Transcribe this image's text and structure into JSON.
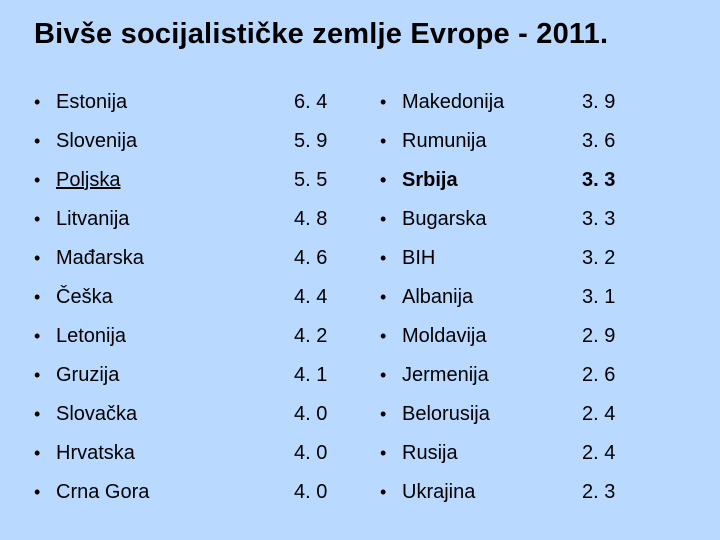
{
  "title": "Bivše socijalističke zemlje Evrope - 2011.",
  "left": [
    {
      "label": "Estonija",
      "value": "6. 4"
    },
    {
      "label": "Slovenija",
      "value": "5. 9"
    },
    {
      "label": "Poljska",
      "value": "5. 5",
      "underline": true
    },
    {
      "label": "Litvanija",
      "value": "4. 8"
    },
    {
      "label": "Mađarska",
      "value": "4. 6"
    },
    {
      "label": "Češka",
      "value": "4. 4"
    },
    {
      "label": "Letonija",
      "value": "4. 2"
    },
    {
      "label": "Gruzija",
      "value": "4. 1"
    },
    {
      "label": "Slovačka",
      "value": "4. 0"
    },
    {
      "label": "Hrvatska",
      "value": "4. 0"
    },
    {
      "label": "Crna Gora",
      "value": "4. 0"
    }
  ],
  "right": [
    {
      "label": "Makedonija",
      "value": "3. 9"
    },
    {
      "label": "Rumunija",
      "value": "3. 6"
    },
    {
      "label": "Srbija",
      "value": "3. 3",
      "bold": true
    },
    {
      "label": "Bugarska",
      "value": "3. 3"
    },
    {
      "label": "BIH",
      "value": "3. 2"
    },
    {
      "label": "Albanija",
      "value": "3. 1"
    },
    {
      "label": "Moldavija",
      "value": "2. 9"
    },
    {
      "label": "Jermenija",
      "value": "2. 6"
    },
    {
      "label": "Belorusija",
      "value": "2. 4"
    },
    {
      "label": "Rusija",
      "value": "2. 4"
    },
    {
      "label": "Ukrajina",
      "value": "2. 3"
    }
  ],
  "style": {
    "background_color": "#bad9ff",
    "text_color": "#000000",
    "title_fontsize": 29,
    "body_fontsize": 20,
    "font_family": "Arial"
  }
}
